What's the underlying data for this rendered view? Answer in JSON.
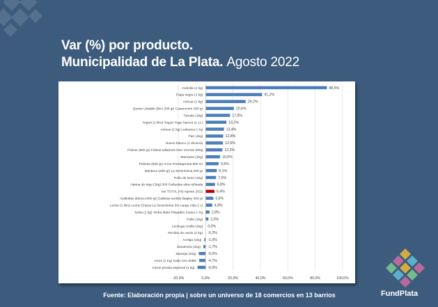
{
  "header": {
    "line1": "Var (%) por producto.",
    "line2_bold": "Municipalidad de La Plata.",
    "line2_light": "Agosto 2022"
  },
  "footer": {
    "source": "Fuente: Elaboración propia | sobre un universo de 18 comercios en 13 barrios"
  },
  "brand": {
    "name": "FundPlata",
    "colors": [
      "#e3b43c",
      "#c86a9e",
      "#5fb8d5",
      "#79c48e"
    ]
  },
  "colors": {
    "background": "#3d5c7d",
    "bar": "#4a7ebb",
    "highlight": "#c00000"
  },
  "chart_data": {
    "type": "bar",
    "orientation": "horizontal",
    "grid": "vertical",
    "xlim": [
      -20,
      100
    ],
    "ticks": [
      "-20,0%",
      "0,0%",
      "20,0%",
      "40,0%",
      "60,0%",
      "80,0%",
      "100,0%"
    ],
    "highlight_category": "Var TOTAL (%) Agosto 2022",
    "categories": [
      "Cebolla (1 kg)",
      "Papa negra (1 kg)",
      "Azúcar (1 kg)",
      "Queso Untable (Bco 200 gr) Casancrem 200 gr",
      "Tomate (1kg)",
      "Yogurt (1 litro) Yogurt Yogs Sancor (1 Lt.)",
      "Azúcar (1 kg) Ledesma 1 Kg",
      "Pan (1kg)",
      "Huevo blanco (1 docena)",
      "Fideos (500 gr) Fideos tallarines Don Vicente 500g",
      "Manzana (1kg)",
      "Polenta (500 gr) Arcor Prestopronta 500 Gr",
      "Manteca (200 gr) La Serenísima 200 gr",
      "Pollo de lomo (1kg)",
      "Harina de trigo (1kg) 000 Cañuelas ultra refinada",
      "Var TOTAL (%) Agosto 2022",
      "Galletitas dulces (400 gr) Galletas surtido Bagley 400 gr",
      "Leche (1 litro) Leche Entera La Serenísima 3% Larga Vida 1 Lt",
      "Yerba (1 kg) Yerba Mate Playadito Suave 1 Kg",
      "Pollo (1kg)",
      "Lechuga criolla (1kg)",
      "Pechito de cerdo (1 kg)",
      "Acelga (1kg)",
      "Zanahoria (1kg)",
      "Naranja (1kg)",
      "Arroz (1 Kg) Gallo Oro doble",
      "Carne picada especial (1 kg)"
    ],
    "values": [
      88.5,
      41.2,
      29.2,
      20.6,
      17.8,
      15.2,
      13.4,
      12.8,
      12.6,
      12.2,
      10.5,
      9.5,
      8.1,
      7.6,
      6.8,
      6.4,
      5.6,
      4.8,
      2.8,
      2.0,
      0.0,
      -0.2,
      -1.0,
      -1.7,
      -5.0,
      -4.7,
      -6.0
    ],
    "labels": [
      "88,5%",
      "41,2%",
      "29,2%",
      "20,6%",
      "17,8%",
      "15,2%",
      "13,4%",
      "12,8%",
      "12,6%",
      "12,2%",
      "10,5%",
      "9,5%",
      "8,1%",
      "7,6%",
      "6,8%",
      "6,4%",
      "5,6%",
      "4,8%",
      "2,8%",
      "2,0%",
      "0,0%",
      "-0,2%",
      "-1,0%",
      "-1,7%",
      "-5,0%",
      "-4,7%",
      "-6,0%"
    ]
  }
}
